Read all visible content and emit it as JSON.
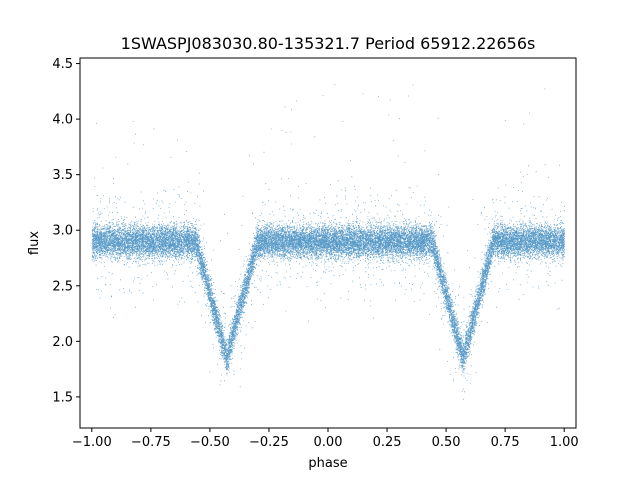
{
  "chart_data": {
    "type": "scatter",
    "title": "1SWASPJ083030.80-135321.7 Period 65912.22656s",
    "xlabel": "phase",
    "ylabel": "flux",
    "xlim": [
      -1.05,
      1.05
    ],
    "ylim": [
      1.22,
      4.55
    ],
    "xticks": [
      -1.0,
      -0.75,
      -0.5,
      -0.25,
      0.0,
      0.25,
      0.5,
      0.75,
      1.0
    ],
    "xtick_labels": [
      "−1.00",
      "−0.75",
      "−0.50",
      "−0.25",
      "0.00",
      "0.25",
      "0.50",
      "0.75",
      "1.00"
    ],
    "yticks": [
      1.5,
      2.0,
      2.5,
      3.0,
      3.5,
      4.0,
      4.5
    ],
    "ytick_labels": [
      "1.5",
      "2.0",
      "2.5",
      "3.0",
      "3.5",
      "4.0",
      "4.5"
    ],
    "grid": false,
    "point_color": "#1f77b4",
    "baseline_flux": 2.9,
    "eclipses": [
      {
        "phase_center": -0.43,
        "min_flux": 1.85
      },
      {
        "phase_center": 0.57,
        "min_flux": 1.85
      }
    ],
    "phase_range": [
      -1.0,
      1.0
    ]
  }
}
